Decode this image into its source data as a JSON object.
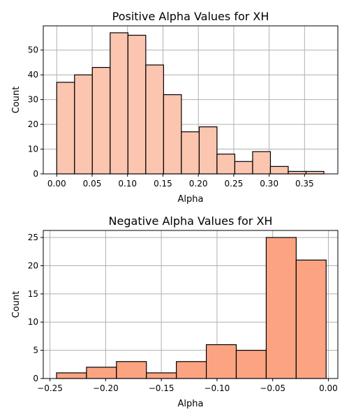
{
  "chart_data": [
    {
      "type": "bar",
      "title": "Positive Alpha Values for XH",
      "xlabel": "Alpha",
      "ylabel": "Count",
      "xlim": [
        -0.019,
        0.397
      ],
      "ylim": [
        0,
        59.8
      ],
      "xticks": [
        0.0,
        0.05,
        0.1,
        0.15,
        0.2,
        0.25,
        0.3,
        0.35
      ],
      "xtick_labels": [
        "0.00",
        "0.05",
        "0.10",
        "0.15",
        "0.20",
        "0.25",
        "0.30",
        "0.35"
      ],
      "yticks": [
        0,
        10,
        20,
        30,
        40,
        50
      ],
      "ytick_labels": [
        "0",
        "10",
        "20",
        "30",
        "40",
        "50"
      ],
      "bin_edges": [
        0.0,
        0.02515,
        0.0503,
        0.07545,
        0.1006,
        0.12575,
        0.1509,
        0.17605,
        0.2012,
        0.22635,
        0.2515,
        0.27665,
        0.3018,
        0.32695,
        0.3521,
        0.37725
      ],
      "values": [
        37,
        40,
        43,
        57,
        56,
        44,
        32,
        17,
        19,
        8,
        5,
        9,
        3,
        1,
        1
      ],
      "color": "#fcc5b0",
      "edgecolor": "#000000",
      "grid": true
    },
    {
      "type": "bar",
      "title": "Negative Alpha Values for XH",
      "xlabel": "Alpha",
      "ylabel": "Count",
      "xlim": [
        -0.256,
        0.0085
      ],
      "ylim": [
        0,
        26.25
      ],
      "xticks": [
        -0.25,
        -0.2,
        -0.15,
        -0.1,
        -0.05,
        0.0
      ],
      "xtick_labels": [
        "−0.25",
        "−0.20",
        "−0.15",
        "−0.10",
        "−0.05",
        "0.00"
      ],
      "yticks": [
        0,
        5,
        10,
        15,
        20,
        25
      ],
      "ytick_labels": [
        "0",
        "5",
        "10",
        "15",
        "20",
        "25"
      ],
      "bin_edges": [
        -0.2441,
        -0.2172,
        -0.1903,
        -0.1634,
        -0.1365,
        -0.1096,
        -0.0827,
        -0.0558,
        -0.0289,
        -0.002
      ],
      "values": [
        1,
        2,
        3,
        1,
        3,
        6,
        5,
        25,
        21
      ],
      "color": "#fca482",
      "edgecolor": "#000000",
      "grid": true
    }
  ]
}
